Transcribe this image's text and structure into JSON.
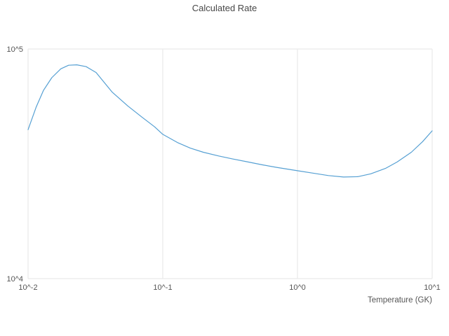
{
  "chart_data": {
    "type": "line",
    "title": "Calculated Rate",
    "xlabel": "Temperature (GK)",
    "ylabel": "",
    "xscale": "log",
    "yscale": "log",
    "xlim": [
      0.01,
      10
    ],
    "ylim": [
      10000,
      100000
    ],
    "grid": true,
    "legend": "none",
    "x_ticks": [
      {
        "value": 0.01,
        "label": "10^-2"
      },
      {
        "value": 0.1,
        "label": "10^-1"
      },
      {
        "value": 1,
        "label": "10^0"
      },
      {
        "value": 10,
        "label": "10^1"
      }
    ],
    "y_ticks": [
      {
        "value": 10000,
        "label": "10^4"
      },
      {
        "value": 100000,
        "label": "10^5"
      }
    ],
    "series": [
      {
        "name": "calculated-rate",
        "color": "#56a0d3",
        "x": [
          0.01,
          0.0115,
          0.013,
          0.015,
          0.0175,
          0.02,
          0.023,
          0.027,
          0.032,
          0.042,
          0.055,
          0.07,
          0.087,
          0.1,
          0.13,
          0.16,
          0.2,
          0.26,
          0.33,
          0.42,
          0.55,
          0.7,
          1.0,
          1.3,
          1.7,
          2.2,
          2.8,
          3.5,
          4.5,
          5.5,
          7.0,
          8.5,
          10.0
        ],
        "y": [
          44500,
          56000,
          66000,
          75000,
          82000,
          85000,
          85300,
          83800,
          79000,
          65000,
          56500,
          50500,
          45800,
          42500,
          39000,
          37000,
          35500,
          34200,
          33200,
          32300,
          31300,
          30500,
          29500,
          28800,
          28100,
          27700,
          27800,
          28600,
          30200,
          32200,
          35500,
          39500,
          44000
        ]
      }
    ]
  },
  "colors": {
    "line": "#56a0d3",
    "grid": "#e6e6e6",
    "text": "#555555",
    "title": "#474747",
    "background": "#ffffff"
  }
}
